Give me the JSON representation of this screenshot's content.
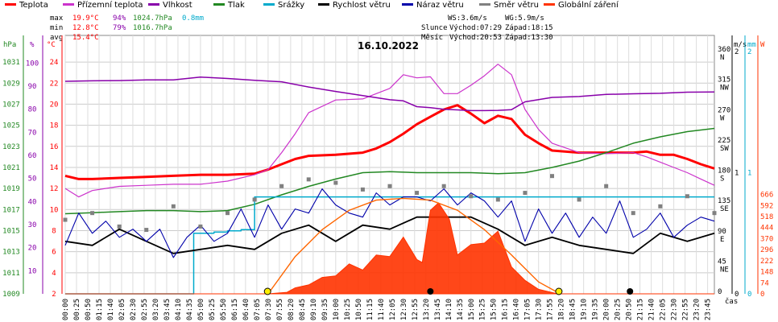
{
  "chart_data": {
    "type": "line",
    "title": "16.10.2022",
    "legend": [
      {
        "name": "Teplota",
        "color": "#ff0000"
      },
      {
        "name": "Přízemní teplota",
        "color": "#cc33cc"
      },
      {
        "name": "Vlhkost",
        "color": "#8800aa"
      },
      {
        "name": "Tlak",
        "color": "#228822"
      },
      {
        "name": "Srážky",
        "color": "#00aacc"
      },
      {
        "name": "Rychlost větru",
        "color": "#000000"
      },
      {
        "name": "Náraz větru",
        "color": "#0000aa"
      },
      {
        "name": "Směr větru",
        "color": "#808080"
      },
      {
        "name": "Globální záření",
        "color": "#ff3300"
      }
    ],
    "stats": {
      "max_label": "max",
      "min_label": "min",
      "avg_label": "avg",
      "max_temp": "19.9°C",
      "max_hum": "94%",
      "max_press": "1024.7hPa",
      "max_rain": "0.8mm",
      "min_temp": "12.8°C",
      "min_hum": "79%",
      "min_press": "1016.7hPa",
      "avg_temp": "15.4°C"
    },
    "wind_info": {
      "ws": "WS:3.6m/s",
      "wg": "WG:5.9m/s"
    },
    "sun_info": {
      "label": "Slunce",
      "rise": "Východ:07:29",
      "set": "Západ:18:15"
    },
    "moon_info": {
      "label": "Měsíc",
      "rise": "Východ:20:53",
      "set": "Západ:13:30"
    },
    "axes": {
      "left_units": [
        "hPa",
        "%",
        "°C"
      ],
      "right_units": [
        "m/s",
        "mm",
        "W"
      ],
      "x_unit": "čas",
      "press_ticks": [
        "1031",
        "1029",
        "1027",
        "1025",
        "1023",
        "1021",
        "1019",
        "1017",
        "1015",
        "1013",
        "1011",
        "1009"
      ],
      "hum_ticks": [
        "100",
        "90",
        "80",
        "70",
        "60",
        "50",
        "40",
        "30",
        "20",
        "10"
      ],
      "temp_ticks": [
        "24",
        "22",
        "20",
        "18",
        "16",
        "14",
        "12",
        "10",
        "8",
        "6",
        "4",
        "2"
      ],
      "dir_ticks": [
        {
          "v": "360",
          "d": "N"
        },
        {
          "v": "315",
          "d": "NW"
        },
        {
          "v": "270",
          "d": "W"
        },
        {
          "v": "225",
          "d": "SW"
        },
        {
          "v": "180",
          "d": "S"
        },
        {
          "v": "135",
          "d": "SE"
        },
        {
          "v": "90",
          "d": "E"
        },
        {
          "v": "45",
          "d": "NE"
        },
        {
          "v": "0",
          "d": ""
        }
      ],
      "ms_ticks": [
        "2",
        "1",
        "0"
      ],
      "mm_ticks": [
        "2",
        "1",
        "0"
      ],
      "w_ticks": [
        "666",
        "592",
        "518",
        "444",
        "370",
        "296",
        "222",
        "148",
        "74",
        "0"
      ],
      "x_ticks": [
        "00:00",
        "00:25",
        "00:50",
        "01:15",
        "01:40",
        "02:05",
        "02:30",
        "02:55",
        "03:20",
        "03:45",
        "04:10",
        "04:35",
        "05:00",
        "05:25",
        "05:50",
        "06:15",
        "06:40",
        "07:05",
        "07:30",
        "07:55",
        "08:20",
        "08:45",
        "09:10",
        "09:35",
        "10:00",
        "10:25",
        "10:50",
        "11:15",
        "11:40",
        "12:05",
        "12:30",
        "12:55",
        "13:20",
        "13:45",
        "14:10",
        "14:35",
        "15:00",
        "15:25",
        "15:50",
        "16:15",
        "16:40",
        "17:05",
        "17:30",
        "17:55",
        "18:20",
        "18:45",
        "19:10",
        "19:35",
        "20:00",
        "20:25",
        "20:50",
        "21:15",
        "21:40",
        "22:05",
        "22:30",
        "22:55",
        "23:20",
        "23:45"
      ]
    },
    "ranges": {
      "hours": [
        0,
        24
      ],
      "temp": [
        2,
        25
      ],
      "humidity": [
        0,
        105
      ],
      "pressure": [
        1009,
        1032
      ],
      "radiation": [
        0,
        666
      ],
      "direction": [
        0,
        360
      ],
      "rain_mm": [
        0,
        2
      ],
      "wind_ms": [
        0,
        2
      ]
    },
    "series": [
      {
        "name": "Teplota",
        "unit": "°C",
        "x": [
          0,
          0.5,
          1,
          2,
          3,
          4,
          5,
          6,
          7,
          7.5,
          8,
          8.5,
          9,
          10,
          11,
          11.5,
          12,
          12.5,
          13,
          13.5,
          14,
          14.5,
          15,
          15.5,
          16,
          16.5,
          17,
          17.5,
          18,
          19,
          20,
          21,
          21.5,
          22,
          22.5,
          23,
          23.5,
          24
        ],
        "y": [
          13.2,
          12.9,
          12.9,
          13.0,
          13.1,
          13.2,
          13.3,
          13.3,
          13.4,
          13.8,
          14.3,
          14.8,
          15.1,
          15.2,
          15.4,
          15.8,
          16.4,
          17.2,
          18.1,
          18.8,
          19.5,
          19.9,
          19.1,
          18.2,
          18.9,
          18.6,
          17.1,
          16.3,
          15.6,
          15.4,
          15.4,
          15.4,
          15.5,
          15.2,
          15.2,
          14.8,
          14.3,
          13.9
        ]
      },
      {
        "name": "Přízemní teplota",
        "unit": "°C",
        "x": [
          0,
          0.5,
          1,
          2,
          3,
          4,
          5,
          6,
          7,
          7.5,
          8,
          8.5,
          9,
          10,
          11,
          11.5,
          12,
          12.5,
          13,
          13.5,
          14,
          14.5,
          15,
          15.5,
          16,
          16.5,
          17,
          17.5,
          18,
          19,
          20,
          21,
          21.5,
          22,
          22.5,
          23,
          23.5,
          24
        ],
        "y": [
          12.0,
          11.2,
          11.8,
          12.2,
          12.3,
          12.4,
          12.4,
          12.7,
          13.3,
          13.8,
          15.4,
          17.2,
          19.2,
          20.4,
          20.5,
          21.0,
          21.5,
          22.8,
          22.5,
          22.6,
          21.0,
          21.0,
          21.8,
          22.7,
          23.8,
          22.8,
          19.5,
          17.6,
          16.3,
          15.4,
          15.3,
          15.4,
          15.0,
          14.5,
          14.0,
          13.5,
          12.9,
          12.3
        ]
      },
      {
        "name": "Vlhkost",
        "unit": "%",
        "x": [
          0,
          1,
          2,
          3,
          4,
          5,
          6,
          7,
          8,
          9,
          10,
          11,
          12,
          12.5,
          13,
          13.5,
          14,
          14.5,
          15,
          15.5,
          16,
          16.5,
          17,
          18,
          19,
          20,
          21,
          22,
          23,
          24
        ],
        "y": [
          92.1,
          92.3,
          92.4,
          92.7,
          92.7,
          93.9,
          93.3,
          92.5,
          91.9,
          89.6,
          87.7,
          85.9,
          84.1,
          83.6,
          81.1,
          80.7,
          80.0,
          79.7,
          79.4,
          79.4,
          79.5,
          79.8,
          83.2,
          85.1,
          85.5,
          86.4,
          86.7,
          86.9,
          87.4,
          87.5
        ]
      },
      {
        "name": "Tlak",
        "unit": "hPa",
        "x": [
          0,
          1,
          2,
          3,
          4,
          5,
          6,
          7,
          8,
          9,
          10,
          11,
          12,
          13,
          14,
          15,
          16,
          17,
          18,
          19,
          20,
          21,
          22,
          23,
          24
        ],
        "y": [
          1016.6,
          1016.7,
          1016.8,
          1016.9,
          1016.9,
          1016.8,
          1016.9,
          1017.5,
          1018.4,
          1019.2,
          1019.9,
          1020.5,
          1020.6,
          1020.5,
          1020.5,
          1020.5,
          1020.4,
          1020.5,
          1021.0,
          1021.6,
          1022.4,
          1023.3,
          1023.9,
          1024.4,
          1024.7
        ]
      },
      {
        "name": "Srážky",
        "unit": "mm",
        "x": [
          0,
          4.7,
          4.75,
          5.5,
          6,
          6.5,
          7,
          7.5,
          8,
          24
        ],
        "y": [
          0,
          0,
          0.5,
          0.51,
          0.52,
          0.53,
          0.8,
          0.8,
          0.8,
          0.8
        ]
      },
      {
        "name": "Rychlost větru",
        "unit": "m/s",
        "x": [
          0,
          1,
          2,
          3,
          4,
          5,
          6,
          7,
          8,
          9,
          10,
          11,
          12,
          13,
          14,
          15,
          16,
          17,
          18,
          19,
          20,
          21,
          22,
          23,
          24
        ],
        "y": [
          1.3,
          1.2,
          1.6,
          1.3,
          1.0,
          1.1,
          1.2,
          1.1,
          1.5,
          1.7,
          1.3,
          1.7,
          1.6,
          1.9,
          1.9,
          1.9,
          1.6,
          1.2,
          1.4,
          1.2,
          1.1,
          1.0,
          1.5,
          1.3,
          1.5
        ]
      },
      {
        "name": "Náraz větru",
        "unit": "m/s",
        "x": [
          0,
          0.5,
          1,
          1.5,
          2,
          2.5,
          3,
          3.5,
          4,
          4.5,
          5,
          5.5,
          6,
          6.5,
          7,
          7.5,
          8,
          8.5,
          9,
          9.5,
          10,
          10.5,
          11,
          11.5,
          12,
          12.5,
          13,
          13.5,
          14,
          14.5,
          15,
          15.5,
          16,
          16.5,
          17,
          17.5,
          18,
          18.5,
          19,
          19.5,
          20,
          20.5,
          21,
          21.5,
          22,
          22.5,
          23,
          23.5,
          24
        ],
        "y": [
          1.2,
          2.0,
          1.5,
          1.8,
          1.4,
          1.6,
          1.3,
          1.6,
          0.9,
          1.4,
          1.7,
          1.3,
          1.5,
          2.1,
          1.4,
          2.2,
          1.6,
          2.1,
          2.0,
          2.6,
          2.2,
          2.0,
          1.9,
          2.5,
          2.2,
          2.4,
          2.4,
          2.3,
          2.6,
          2.2,
          2.5,
          2.3,
          1.9,
          2.3,
          1.3,
          2.1,
          1.5,
          2.0,
          1.4,
          1.9,
          1.5,
          2.3,
          1.4,
          1.6,
          2.0,
          1.4,
          1.7,
          1.9,
          1.8
        ]
      },
      {
        "name": "Směr větru",
        "unit": "°",
        "x": [
          0,
          1,
          2,
          3,
          4,
          5,
          6,
          7,
          8,
          9,
          10,
          11,
          12,
          13,
          14,
          15,
          16,
          17,
          18,
          19,
          20,
          21,
          22,
          23,
          24
        ],
        "y": [
          110,
          120,
          100,
          95,
          130,
          100,
          120,
          140,
          160,
          170,
          165,
          155,
          160,
          150,
          160,
          145,
          140,
          150,
          175,
          140,
          160,
          120,
          130,
          145,
          120
        ]
      },
      {
        "name": "Globální záření",
        "unit": "W",
        "x": [
          0,
          7.5,
          8.2,
          8.5,
          9,
          9.5,
          10,
          10.5,
          11,
          11.5,
          12,
          12.5,
          13,
          13.2,
          13.5,
          13.8,
          14.2,
          14.5,
          15,
          15.5,
          16,
          16.5,
          17,
          17.5,
          18.2,
          24
        ],
        "y": [
          0,
          0,
          10,
          40,
          60,
          110,
          120,
          200,
          160,
          260,
          250,
          380,
          230,
          210,
          560,
          610,
          500,
          260,
          330,
          340,
          420,
          180,
          90,
          30,
          0,
          0
        ]
      },
      {
        "name": "Globální záření (teoretické)",
        "unit": "W",
        "x": [
          7.5,
          8.5,
          9.5,
          10.5,
          11.5,
          12.5,
          13.5,
          14.5,
          15.5,
          16.5,
          17.5,
          18.3
        ],
        "y": [
          0,
          250,
          430,
          560,
          628,
          640,
          628,
          560,
          430,
          260,
          80,
          0
        ]
      }
    ],
    "markers": {
      "sunrise": 7.48,
      "sunset": 18.25,
      "moonrise": 20.88,
      "moonset": 13.5
    },
    "grid": true
  }
}
